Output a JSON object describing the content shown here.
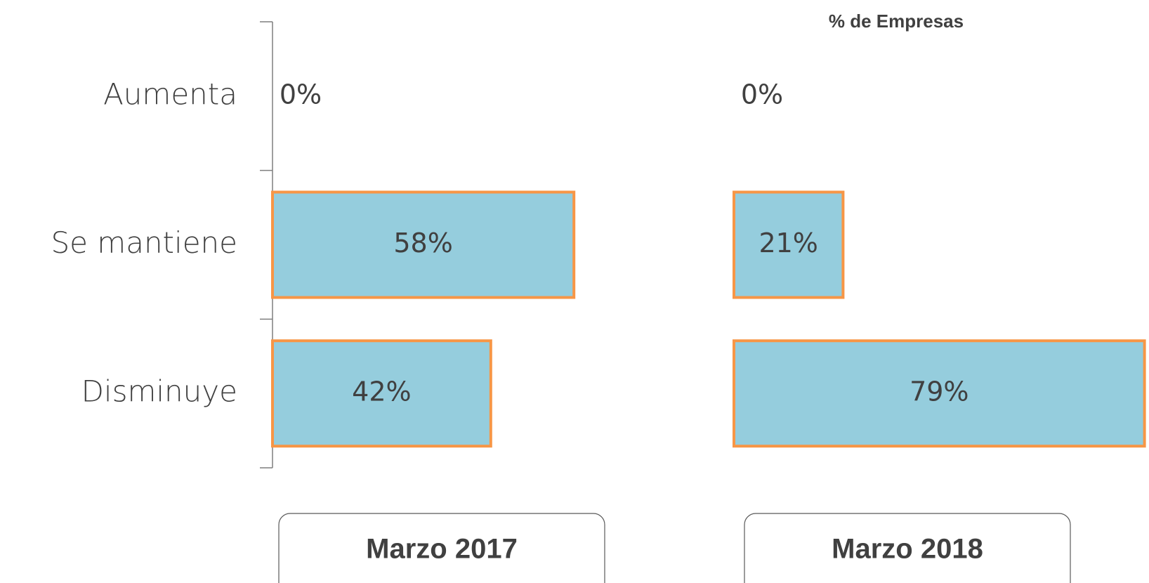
{
  "chart_data": {
    "type": "bar",
    "orientation": "horizontal",
    "title": "% de Empresas",
    "categories": [
      "Aumenta",
      "Se mantiene",
      "Disminuye"
    ],
    "series": [
      {
        "name": "Marzo 2017",
        "color": "#95cddd",
        "edge_color": "#f79646",
        "values": [
          0,
          58,
          42
        ],
        "value_labels": [
          "0%",
          "58%",
          "42%"
        ]
      },
      {
        "name": "Marzo 2018",
        "color": "#95cddd",
        "edge_color": "#f79646",
        "values": [
          0,
          21,
          79
        ],
        "value_labels": [
          "0%",
          "21%",
          "79%"
        ]
      }
    ]
  }
}
